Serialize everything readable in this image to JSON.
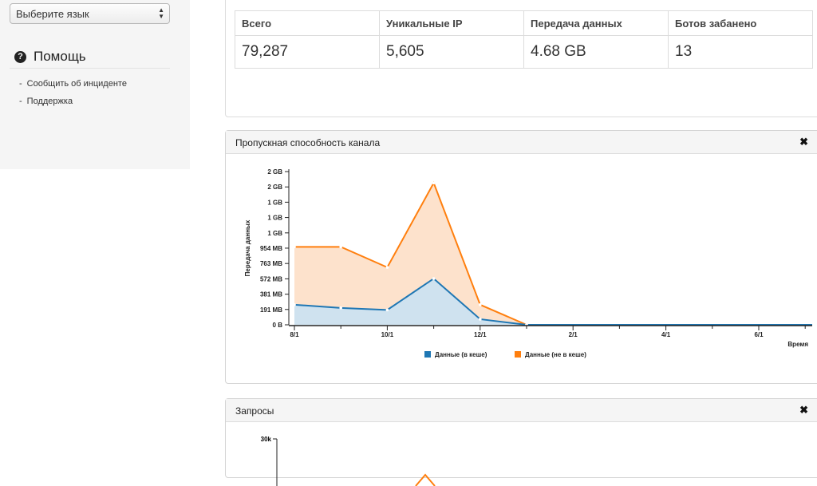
{
  "sidebar": {
    "language_select": {
      "value": "Выберите язык"
    },
    "help": {
      "title": "Помощь",
      "links": [
        "Сообщить об инциденте",
        "Поддержка"
      ]
    }
  },
  "stats": {
    "headers": [
      "Всего",
      "Уникальные IP",
      "Передача данных",
      "Ботов забанено"
    ],
    "values": [
      "79,287",
      "5,605",
      "4.68 GB",
      "13"
    ]
  },
  "bandwidth_panel": {
    "title": "Пропускная способность канала",
    "close_icon": "times-icon"
  },
  "requests_panel": {
    "title": "Запросы",
    "close_icon": "times-icon",
    "first_tick": "30k"
  },
  "chart_data": {
    "type": "area",
    "ylabel": "Передача данных",
    "xlabel": "Время",
    "y_ticks": [
      "0 B",
      "191 MB",
      "381 MB",
      "572 MB",
      "763 MB",
      "954 MB",
      "1 GB",
      "1 GB",
      "1 GB",
      "2 GB",
      "2 GB"
    ],
    "y_tick_values_mb": [
      0,
      191,
      381,
      572,
      763,
      954,
      1144,
      1335,
      1526,
      1716,
      1907
    ],
    "x_ticks": [
      "8/1",
      "10/1",
      "12/1",
      "2/1",
      "4/1",
      "6/1"
    ],
    "x_tick_months": [
      0,
      2,
      4,
      6,
      8,
      10
    ],
    "x": [
      0,
      1,
      2,
      3,
      4,
      5,
      6,
      7,
      8,
      9,
      10,
      11
    ],
    "series": [
      {
        "name": "Данные (в кеше)",
        "color": "#1f77b4",
        "fill": "#cfe2ef",
        "values_mb": [
          250,
          210,
          185,
          575,
          70,
          0,
          0,
          0,
          0,
          0,
          0,
          0
        ]
      },
      {
        "name": "Данные (не в кеше)",
        "color": "#ff7f0e",
        "fill": "#fde2cc",
        "values_mb": [
          720,
          760,
          530,
          1190,
          180,
          0,
          0,
          0,
          0,
          0,
          0,
          0
        ]
      }
    ],
    "stacked": true,
    "legend_position": "bottom"
  }
}
